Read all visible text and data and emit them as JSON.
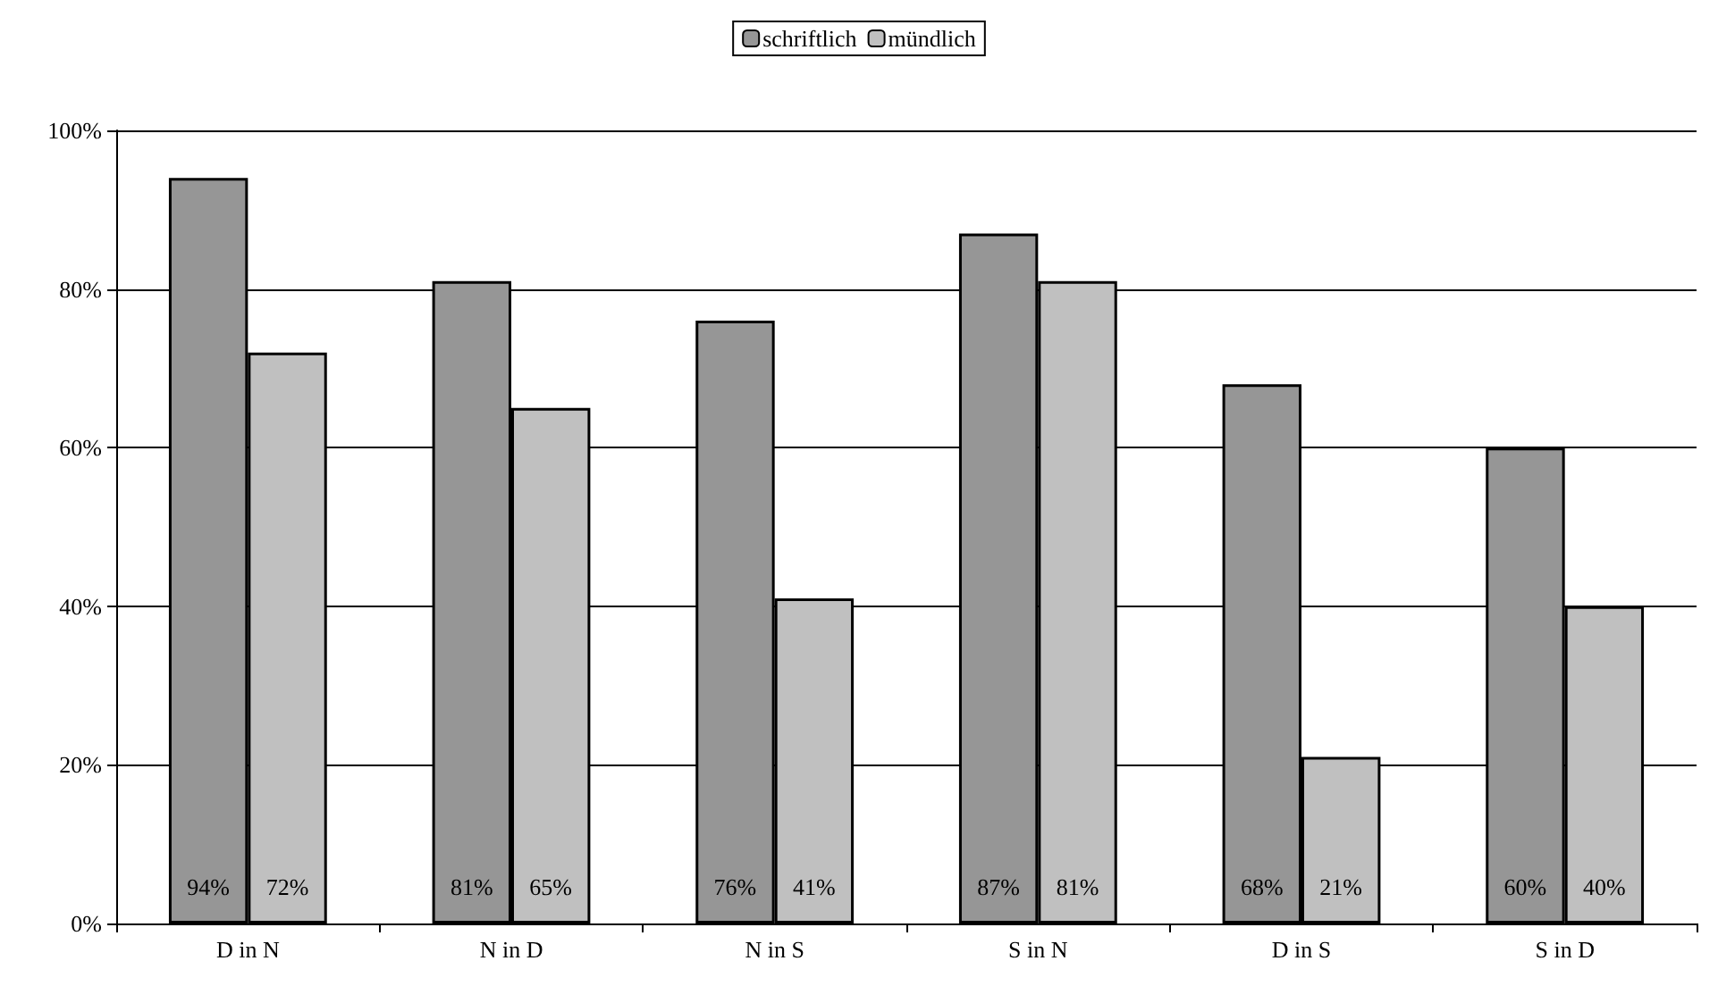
{
  "chart_data": {
    "type": "bar",
    "categories": [
      "D in N",
      "N in D",
      "N in S",
      "S in N",
      "D in S",
      "S in D"
    ],
    "series": [
      {
        "name": "schriftlich",
        "color": "#969696",
        "values": [
          94,
          81,
          76,
          87,
          68,
          60
        ],
        "value_labels": [
          "94%",
          "81%",
          "76%",
          "87%",
          "68%",
          "60%"
        ]
      },
      {
        "name": "mündlich",
        "color": "#c0c0c0",
        "values": [
          72,
          65,
          41,
          81,
          21,
          40
        ],
        "value_labels": [
          "72%",
          "65%",
          "41%",
          "81%",
          "21%",
          "40%"
        ]
      }
    ],
    "ylim": [
      0,
      100
    ],
    "yticks": [
      {
        "value": 0,
        "label": "0%"
      },
      {
        "value": 20,
        "label": "20%"
      },
      {
        "value": 40,
        "label": "40%"
      },
      {
        "value": 60,
        "label": "60%"
      },
      {
        "value": 80,
        "label": "80%"
      },
      {
        "value": 100,
        "label": "100%"
      }
    ],
    "grid": "y",
    "legend": "top"
  }
}
